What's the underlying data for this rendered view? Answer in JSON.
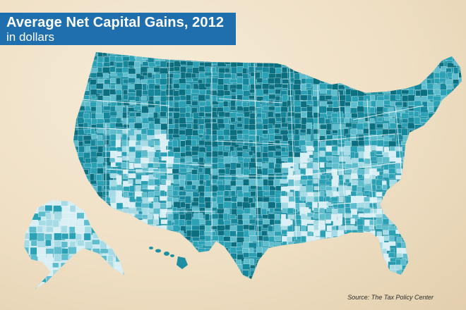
{
  "title": "Average Net Capital Gains, 2012",
  "subtitle": "in dollars",
  "source": "Source: The Tax Policy Center",
  "colors": {
    "background": "#efdfc4",
    "title_bar": "#1f6fae",
    "title_text": "#ffffff",
    "state_lines": "#f4fbfd",
    "palette": [
      "#0b6f80",
      "#16879a",
      "#2aa1b5",
      "#5ebdcc",
      "#a6dbe5",
      "#d9eff4"
    ]
  },
  "regions": [
    {
      "name": "contiguous-us"
    },
    {
      "name": "alaska"
    },
    {
      "name": "hawaii"
    }
  ]
}
